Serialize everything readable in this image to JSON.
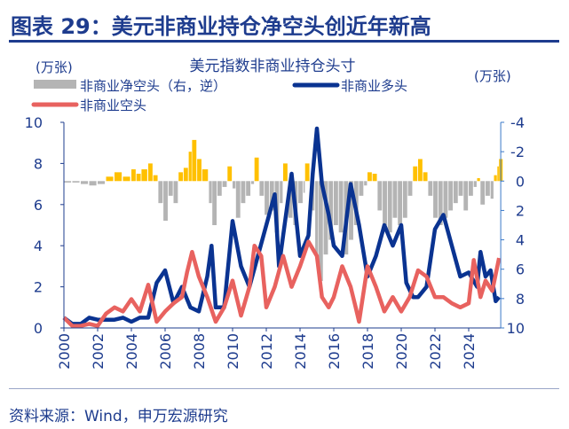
{
  "header": {
    "title": "图表 29：美元非商业持仓净空头创近年新高"
  },
  "footer": {
    "source": "资料来源：Wind，申万宏源研究"
  },
  "chart_data": {
    "type": "line",
    "title": "美元指数非商业持仓头寸",
    "ylabel_left": "(万张)",
    "ylabel_right": "(万张)",
    "ylim_left": [
      0,
      10
    ],
    "ylim_right": [
      -4,
      10
    ],
    "right_axis_reversed": true,
    "left_ticks": [
      "0",
      "2",
      "4",
      "6",
      "8",
      "10"
    ],
    "right_ticks": [
      "-4",
      "-2",
      "0",
      "2",
      "4",
      "6",
      "8",
      "10"
    ],
    "x_ticks": [
      "2000",
      "2002",
      "2004",
      "2006",
      "2008",
      "2010",
      "2012",
      "2014",
      "2016",
      "2018",
      "2020",
      "2022",
      "2024"
    ],
    "colors": {
      "net_short_positive": "#b4b4b4",
      "net_short_negative": "#ffc000",
      "long": "#0a3391",
      "short": "#e8625f",
      "axis": "#1e3c8e",
      "right_axis": "#3a78c8"
    },
    "legend": [
      {
        "name": "非商业净空头（右，逆）",
        "type": "bar"
      },
      {
        "name": "非商业多头",
        "type": "line"
      },
      {
        "name": "非商业空头",
        "type": "line"
      }
    ],
    "series": [
      {
        "name": "非商业净空头（右，逆）",
        "axis": "right",
        "type": "bar",
        "points": [
          [
            2000,
            0.1
          ],
          [
            2000.5,
            0.1
          ],
          [
            2001,
            0.2
          ],
          [
            2001.5,
            0.3
          ],
          [
            2002,
            0.2
          ],
          [
            2002.5,
            -0.3
          ],
          [
            2003,
            -0.6
          ],
          [
            2003.5,
            -0.3
          ],
          [
            2004,
            -0.8
          ],
          [
            2004.3,
            -0.5
          ],
          [
            2004.6,
            -0.8
          ],
          [
            2005,
            -1.2
          ],
          [
            2005.3,
            -0.4
          ],
          [
            2005.6,
            1.5
          ],
          [
            2005.9,
            2.7
          ],
          [
            2006.2,
            1.0
          ],
          [
            2006.5,
            1.5
          ],
          [
            2006.8,
            -0.6
          ],
          [
            2007.1,
            -0.9
          ],
          [
            2007.4,
            -2.0
          ],
          [
            2007.6,
            -2.8
          ],
          [
            2007.9,
            -1.5
          ],
          [
            2008.2,
            -0.8
          ],
          [
            2008.6,
            1.5
          ],
          [
            2008.8,
            3.0
          ],
          [
            2009.1,
            1.0
          ],
          [
            2009.4,
            0.4
          ],
          [
            2009.7,
            -1.0
          ],
          [
            2010,
            0.5
          ],
          [
            2010.2,
            2.5
          ],
          [
            2010.5,
            1.5
          ],
          [
            2010.8,
            1.0
          ],
          [
            2011.1,
            0.2
          ],
          [
            2011.3,
            -1.6
          ],
          [
            2011.6,
            1.0
          ],
          [
            2011.9,
            2.3
          ],
          [
            2012.2,
            2.0
          ],
          [
            2012.5,
            3.5
          ],
          [
            2012.8,
            1.5
          ],
          [
            2013,
            -1.2
          ],
          [
            2013.3,
            2.5
          ],
          [
            2013.6,
            3.0
          ],
          [
            2013.9,
            1.5
          ],
          [
            2014.2,
            0.8
          ],
          [
            2014.3,
            -1.2
          ],
          [
            2014.6,
            2.0
          ],
          [
            2014.9,
            5.0
          ],
          [
            2015.1,
            6.8
          ],
          [
            2015.4,
            5.0
          ],
          [
            2015.7,
            4.0
          ],
          [
            2016,
            3.0
          ],
          [
            2016.3,
            3.5
          ],
          [
            2016.6,
            5.0
          ],
          [
            2016.9,
            4.0
          ],
          [
            2017.2,
            3.0
          ],
          [
            2017.5,
            1.0
          ],
          [
            2017.8,
            0.3
          ],
          [
            2018,
            -0.6
          ],
          [
            2018.3,
            -0.5
          ],
          [
            2018.6,
            2.0
          ],
          [
            2018.9,
            3.0
          ],
          [
            2019.2,
            3.5
          ],
          [
            2019.5,
            2.5
          ],
          [
            2019.8,
            3.0
          ],
          [
            2020.1,
            2.5
          ],
          [
            2020.4,
            1.0
          ],
          [
            2020.7,
            -1.0
          ],
          [
            2021,
            -1.5
          ],
          [
            2021.3,
            -0.6
          ],
          [
            2021.6,
            1.0
          ],
          [
            2021.9,
            2.5
          ],
          [
            2022.2,
            3.0
          ],
          [
            2022.5,
            2.5
          ],
          [
            2022.8,
            2.0
          ],
          [
            2023.1,
            1.5
          ],
          [
            2023.4,
            1.0
          ],
          [
            2023.7,
            2.0
          ],
          [
            2024,
            1.0
          ],
          [
            2024.3,
            0.4
          ],
          [
            2024.5,
            -0.2
          ],
          [
            2024.7,
            1.6
          ],
          [
            2025,
            1.0
          ],
          [
            2025.3,
            1.2
          ],
          [
            2025.5,
            -0.4
          ],
          [
            2025.7,
            -1.0
          ],
          [
            2025.8,
            -1.5
          ]
        ]
      },
      {
        "name": "非商业多头",
        "axis": "left",
        "type": "line",
        "points": [
          [
            2000,
            0.5
          ],
          [
            2000.5,
            0.2
          ],
          [
            2001,
            0.2
          ],
          [
            2001.5,
            0.5
          ],
          [
            2002,
            0.4
          ],
          [
            2002.5,
            0.4
          ],
          [
            2003,
            0.4
          ],
          [
            2003.5,
            0.5
          ],
          [
            2004,
            0.3
          ],
          [
            2004.5,
            0.5
          ],
          [
            2005,
            0.5
          ],
          [
            2005.5,
            2.2
          ],
          [
            2006,
            2.8
          ],
          [
            2006.5,
            1.2
          ],
          [
            2007,
            2.0
          ],
          [
            2007.5,
            1.0
          ],
          [
            2008,
            0.8
          ],
          [
            2008.5,
            2.5
          ],
          [
            2008.75,
            4.0
          ],
          [
            2009,
            1.0
          ],
          [
            2009.5,
            1.0
          ],
          [
            2010,
            5.2
          ],
          [
            2010.5,
            3.0
          ],
          [
            2011,
            2.0
          ],
          [
            2011.5,
            3.5
          ],
          [
            2012,
            5.0
          ],
          [
            2012.5,
            6.5
          ],
          [
            2012.75,
            3.0
          ],
          [
            2013,
            4.5
          ],
          [
            2013.5,
            7.5
          ],
          [
            2014,
            3.5
          ],
          [
            2014.5,
            4.5
          ],
          [
            2014.75,
            7.5
          ],
          [
            2015,
            9.7
          ],
          [
            2015.3,
            7.0
          ],
          [
            2015.7,
            5.5
          ],
          [
            2016,
            4.0
          ],
          [
            2016.5,
            3.5
          ],
          [
            2017,
            7.0
          ],
          [
            2017.5,
            5.0
          ],
          [
            2018,
            2.5
          ],
          [
            2018.5,
            3.5
          ],
          [
            2019,
            5.0
          ],
          [
            2019.5,
            4.0
          ],
          [
            2020,
            5.0
          ],
          [
            2020.3,
            2.2
          ],
          [
            2020.7,
            1.5
          ],
          [
            2021,
            1.5
          ],
          [
            2021.5,
            2.0
          ],
          [
            2022,
            4.8
          ],
          [
            2022.5,
            5.5
          ],
          [
            2023,
            4.0
          ],
          [
            2023.5,
            2.5
          ],
          [
            2024,
            2.7
          ],
          [
            2024.5,
            2.0
          ],
          [
            2024.7,
            3.7
          ],
          [
            2025,
            2.5
          ],
          [
            2025.3,
            2.8
          ],
          [
            2025.6,
            1.3
          ],
          [
            2025.8,
            1.5
          ]
        ]
      },
      {
        "name": "非商业空头",
        "axis": "left",
        "type": "line",
        "points": [
          [
            2000,
            0.5
          ],
          [
            2000.5,
            0.1
          ],
          [
            2001,
            0.1
          ],
          [
            2001.5,
            0.2
          ],
          [
            2002,
            0.1
          ],
          [
            2002.5,
            0.7
          ],
          [
            2003,
            1.0
          ],
          [
            2003.5,
            0.8
          ],
          [
            2004,
            1.4
          ],
          [
            2004.5,
            0.8
          ],
          [
            2005,
            2.1
          ],
          [
            2005.5,
            0.3
          ],
          [
            2006,
            0.8
          ],
          [
            2006.5,
            1.2
          ],
          [
            2007,
            1.5
          ],
          [
            2007.3,
            2.7
          ],
          [
            2007.6,
            3.7
          ],
          [
            2008,
            2.5
          ],
          [
            2008.5,
            1.5
          ],
          [
            2009,
            0.3
          ],
          [
            2009.5,
            1.0
          ],
          [
            2010,
            2.3
          ],
          [
            2010.5,
            0.6
          ],
          [
            2011,
            2.0
          ],
          [
            2011.3,
            4.0
          ],
          [
            2011.7,
            3.5
          ],
          [
            2012,
            1.0
          ],
          [
            2012.5,
            2.0
          ],
          [
            2013,
            3.5
          ],
          [
            2013.5,
            2.0
          ],
          [
            2014,
            3.0
          ],
          [
            2014.5,
            4.2
          ],
          [
            2015,
            3.5
          ],
          [
            2015.3,
            1.5
          ],
          [
            2015.7,
            1.0
          ],
          [
            2016,
            1.5
          ],
          [
            2016.5,
            3.0
          ],
          [
            2017,
            2.0
          ],
          [
            2017.3,
            1.0
          ],
          [
            2017.5,
            0.3
          ],
          [
            2018,
            3.0
          ],
          [
            2018.5,
            2.0
          ],
          [
            2019,
            0.8
          ],
          [
            2019.5,
            1.5
          ],
          [
            2020,
            0.8
          ],
          [
            2020.5,
            1.5
          ],
          [
            2021,
            2.8
          ],
          [
            2021.5,
            2.5
          ],
          [
            2022,
            1.5
          ],
          [
            2022.5,
            1.5
          ],
          [
            2023,
            1.2
          ],
          [
            2023.5,
            1.0
          ],
          [
            2024,
            1.2
          ],
          [
            2024.3,
            3.3
          ],
          [
            2024.7,
            1.5
          ],
          [
            2025,
            2.3
          ],
          [
            2025.4,
            1.8
          ],
          [
            2025.8,
            3.4
          ]
        ]
      }
    ]
  }
}
